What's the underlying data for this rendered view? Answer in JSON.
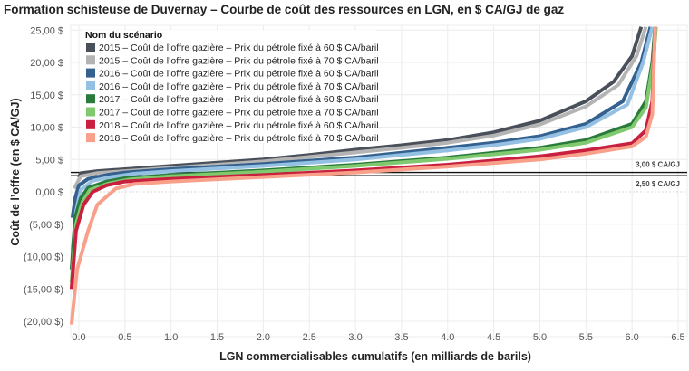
{
  "chart_data": {
    "type": "line",
    "title": "Formation schisteuse de Duvernay – Courbe de coût des ressources en LGN, en $ CA/GJ de gaz",
    "xlabel": "LGN commercialisables cumulatifs (en milliards de barils)",
    "ylabel": "Coût de l’offre (en $ CA/GJ)",
    "xlim": [
      -0.1,
      6.6
    ],
    "ylim": [
      -21,
      26
    ],
    "grid": true,
    "legend_title": "Nom du scénario",
    "legend_placement": "top-left",
    "x_ticks": [
      {
        "v": 0,
        "label": "0.0"
      },
      {
        "v": 0.5,
        "label": "0.5"
      },
      {
        "v": 1,
        "label": "1.0"
      },
      {
        "v": 1.5,
        "label": "1.5"
      },
      {
        "v": 2,
        "label": "2.0"
      },
      {
        "v": 2.5,
        "label": "2.5"
      },
      {
        "v": 3,
        "label": "3.0"
      },
      {
        "v": 3.5,
        "label": "3.5"
      },
      {
        "v": 4,
        "label": "4.0"
      },
      {
        "v": 4.5,
        "label": "4.5"
      },
      {
        "v": 5,
        "label": "5.0"
      },
      {
        "v": 5.5,
        "label": "5.5"
      },
      {
        "v": 6,
        "label": "6.0"
      },
      {
        "v": 6.5,
        "label": "6.5"
      }
    ],
    "y_ticks": [
      {
        "v": 25,
        "label": "25,00 $"
      },
      {
        "v": 20,
        "label": "20,00 $"
      },
      {
        "v": 15,
        "label": "15,00 $"
      },
      {
        "v": 10,
        "label": "10,00 $"
      },
      {
        "v": 5,
        "label": "5,00 $"
      },
      {
        "v": 0,
        "label": "0,00 $"
      },
      {
        "v": -5,
        "label": "(5,00 $)"
      },
      {
        "v": -10,
        "label": "(10,00 $)"
      },
      {
        "v": -15,
        "label": "(15,00 $)"
      },
      {
        "v": -20,
        "label": "(20,00 $)"
      }
    ],
    "reference_lines": [
      {
        "value": 3.0,
        "label": "3,00 $ CA/GJ"
      },
      {
        "value": 2.5,
        "label": "2,50 $ CA/GJ"
      }
    ],
    "series": [
      {
        "name": "2015 – Coût de l’offre gazière – Prix du pétrole fixé à 60 $ CA/baril",
        "color": "#4a505a",
        "x": [
          0,
          0.02,
          0.2,
          0.5,
          1,
          1.5,
          2,
          2.5,
          3,
          3.5,
          4,
          4.5,
          5,
          5.5,
          5.8,
          6.0,
          6.1
        ],
        "y": [
          2.2,
          2.9,
          3.2,
          3.5,
          4.0,
          4.5,
          5.0,
          5.7,
          6.5,
          7.2,
          8.0,
          9.2,
          11.0,
          14.0,
          17.0,
          21.0,
          25.5
        ]
      },
      {
        "name": "2015 – Coût de l’offre gazière – Prix du pétrole fixé à 70 $ CA/baril",
        "color": "#b4b4b4",
        "x": [
          -0.05,
          0.02,
          0.2,
          0.5,
          1,
          1.5,
          2,
          2.5,
          3,
          3.5,
          4,
          4.5,
          5,
          5.5,
          5.85,
          6.05,
          6.15
        ],
        "y": [
          0.5,
          2.4,
          2.9,
          3.2,
          3.7,
          4.2,
          4.7,
          5.4,
          6.1,
          6.8,
          7.6,
          8.7,
          10.4,
          13.2,
          16.5,
          21.0,
          25.5
        ]
      },
      {
        "name": "2016 – Coût de l’offre gazière – Prix du pétrole fixé à 60 $ CA/baril",
        "color": "#35618f",
        "x": [
          -0.07,
          -0.04,
          0,
          0.1,
          0.3,
          0.5,
          1,
          2,
          3,
          4,
          4.5,
          5,
          5.5,
          5.9,
          6.1,
          6.2
        ],
        "y": [
          -4,
          -1,
          1,
          2.0,
          2.6,
          3.0,
          3.5,
          4.3,
          5.3,
          6.8,
          7.6,
          8.6,
          10.5,
          14.0,
          20.0,
          25.5
        ]
      },
      {
        "name": "2016 – Coût de l’offre gazière – Prix du pétrole fixé à 70 $ CA/baril",
        "color": "#94c1e3",
        "x": [
          -0.07,
          -0.03,
          0.02,
          0.15,
          0.35,
          0.6,
          1,
          2,
          3,
          4,
          4.5,
          5,
          5.5,
          5.95,
          6.12,
          6.22
        ],
        "y": [
          -9,
          -3,
          0.3,
          1.7,
          2.3,
          2.8,
          3.2,
          4.0,
          5.0,
          6.4,
          7.2,
          8.2,
          10.0,
          13.5,
          20.0,
          25.5
        ]
      },
      {
        "name": "2017 – Coût de l’offre gazière – Prix du pétrole fixé à 60 $ CA/baril",
        "color": "#2a7a3c",
        "x": [
          -0.08,
          -0.04,
          0.02,
          0.1,
          0.3,
          0.5,
          1,
          2,
          3,
          4,
          5,
          5.5,
          6.0,
          6.15,
          6.22,
          6.25
        ],
        "y": [
          -12,
          -4,
          -1,
          0.6,
          1.6,
          2.1,
          2.6,
          3.3,
          4.2,
          5.3,
          6.8,
          8.0,
          10.5,
          14.0,
          20.0,
          25.5
        ]
      },
      {
        "name": "2017 – Coût de l’offre gazière – Prix du pétrole fixé à 70 $ CA/baril",
        "color": "#80c96e",
        "x": [
          -0.08,
          -0.03,
          0.04,
          0.12,
          0.32,
          0.55,
          1,
          2,
          3,
          4,
          5,
          5.5,
          6.0,
          6.15,
          6.23,
          6.26
        ],
        "y": [
          -14,
          -5,
          -1.5,
          0.3,
          1.3,
          1.9,
          2.4,
          3.1,
          4.0,
          5.1,
          6.5,
          7.6,
          10.0,
          13.0,
          20.0,
          25.5
        ]
      },
      {
        "name": "2018 – Coût de l’offre gazière – Prix du pétrole fixé à 60 $ CA/baril",
        "color": "#c8203e",
        "x": [
          -0.08,
          -0.03,
          0.05,
          0.15,
          0.3,
          0.5,
          1,
          2,
          3,
          4,
          5,
          5.5,
          6.0,
          6.15,
          6.22,
          6.25
        ],
        "y": [
          -15,
          -6,
          -2,
          0,
          1.0,
          1.6,
          2.0,
          2.6,
          3.3,
          4.2,
          5.5,
          6.4,
          7.5,
          9.5,
          14.0,
          25.5
        ]
      },
      {
        "name": "2018 – Coût de l’offre gazière – Prix du pétrole fixé à 70 $ CA/baril",
        "color": "#f8a08a",
        "x": [
          -0.08,
          -0.02,
          0.1,
          0.2,
          0.4,
          0.6,
          1,
          2,
          3,
          4,
          5,
          5.5,
          6.0,
          6.15,
          6.22,
          6.25
        ],
        "y": [
          -20.5,
          -12,
          -6,
          -2,
          0.5,
          1.2,
          1.6,
          2.3,
          3.0,
          3.9,
          5.0,
          5.9,
          7.0,
          8.5,
          12.0,
          25.5
        ]
      }
    ]
  }
}
